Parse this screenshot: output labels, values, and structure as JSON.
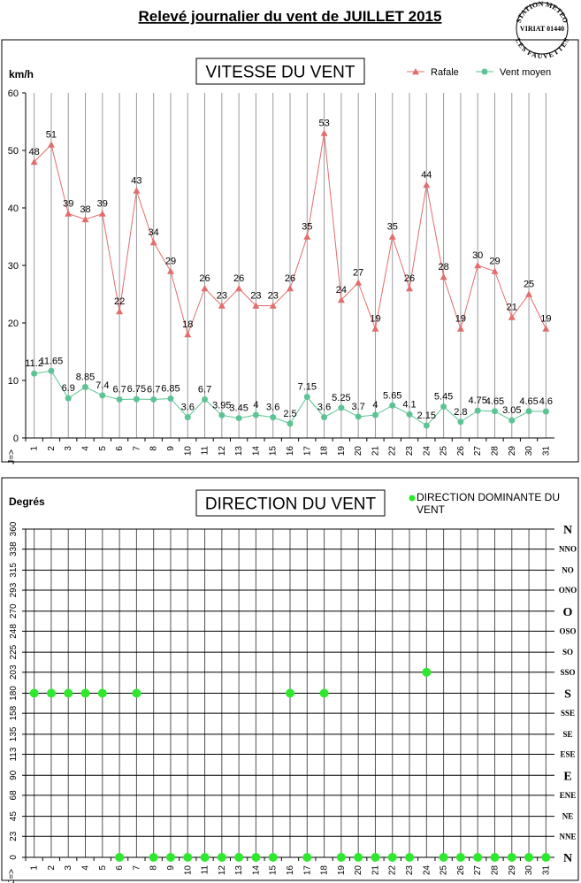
{
  "title": "Relevé journalier du vent de JUILLET 2015",
  "logo": [
    "STATION METEO",
    "VIRIAT 01440",
    "LES FAUVETTES"
  ],
  "chart_data": [
    {
      "type": "line",
      "title": "VITESSE DU VENT",
      "y_label": "km/h",
      "x_label": "J=>",
      "categories": [
        "1",
        "2",
        "3",
        "4",
        "5",
        "6",
        "7",
        "8",
        "9",
        "10",
        "11",
        "12",
        "13",
        "14",
        "15",
        "16",
        "17",
        "18",
        "19",
        "20",
        "21",
        "22",
        "23",
        "24",
        "25",
        "26",
        "27",
        "28",
        "29",
        "30",
        "31"
      ],
      "ylim": [
        0,
        60
      ],
      "yticks": [
        0,
        10,
        20,
        30,
        40,
        50,
        60
      ],
      "grid": "x",
      "legend": "top-right",
      "series": [
        {
          "name": "Rafale",
          "color": "#e36c6c",
          "marker": "triangle",
          "values": [
            48,
            51,
            39,
            38,
            39,
            22,
            43,
            34,
            29,
            18,
            26,
            23,
            26,
            23,
            23,
            26,
            35,
            53,
            24,
            27,
            19,
            35,
            26,
            44,
            28,
            19,
            30,
            29,
            21,
            25,
            19
          ]
        },
        {
          "name": "Vent moyen",
          "color": "#5cc494",
          "marker": "circle",
          "values": [
            11.2,
            11.65,
            6.9,
            8.85,
            7.4,
            6.7,
            6.75,
            6.7,
            6.85,
            3.6,
            6.7,
            3.95,
            3.45,
            4,
            3.6,
            2.5,
            7.15,
            3.6,
            5.25,
            3.7,
            4,
            5.65,
            4.1,
            2.15,
            5.45,
            2.8,
            4.75,
            4.65,
            3.05,
            4.65,
            4.6
          ]
        }
      ]
    },
    {
      "type": "scatter",
      "title": "DIRECTION DU VENT",
      "y_label": "Degrés",
      "x_label": "J=>",
      "categories": [
        "1",
        "2",
        "3",
        "4",
        "5",
        "6",
        "7",
        "8",
        "9",
        "10",
        "11",
        "12",
        "13",
        "14",
        "15",
        "16",
        "17",
        "18",
        "19",
        "20",
        "21",
        "22",
        "23",
        "24",
        "25",
        "26",
        "27",
        "28",
        "29",
        "30",
        "31"
      ],
      "ylim": [
        0,
        360
      ],
      "yticks": [
        0,
        23,
        45,
        68,
        90,
        113,
        135,
        158,
        180,
        203,
        225,
        248,
        270,
        293,
        315,
        338,
        360
      ],
      "y2lim": [
        0,
        360
      ],
      "y2ticks": [
        {
          "value": 0,
          "label": "N"
        },
        {
          "value": 23,
          "label": "NNE"
        },
        {
          "value": 45,
          "label": "NE"
        },
        {
          "value": 68,
          "label": "ENE"
        },
        {
          "value": 90,
          "label": "E"
        },
        {
          "value": 113,
          "label": "ESE"
        },
        {
          "value": 135,
          "label": "SE"
        },
        {
          "value": 158,
          "label": "SSE"
        },
        {
          "value": 180,
          "label": "S"
        },
        {
          "value": 203,
          "label": "SSO"
        },
        {
          "value": 225,
          "label": "SO"
        },
        {
          "value": 248,
          "label": "OSO"
        },
        {
          "value": 270,
          "label": "O"
        },
        {
          "value": 293,
          "label": "ONO"
        },
        {
          "value": 315,
          "label": "NO"
        },
        {
          "value": 338,
          "label": "NNO"
        },
        {
          "value": 360,
          "label": "N"
        }
      ],
      "grid": "both",
      "legend": "top-right",
      "series": [
        {
          "name": "DIRECTION DOMINANTE DU VENT",
          "color": "#2ee82e",
          "values": [
            180,
            180,
            180,
            180,
            180,
            0,
            180,
            0,
            0,
            0,
            0,
            0,
            0,
            0,
            0,
            180,
            0,
            180,
            0,
            0,
            0,
            0,
            0,
            203,
            0,
            0,
            0,
            0,
            0,
            0,
            0
          ]
        }
      ]
    }
  ]
}
